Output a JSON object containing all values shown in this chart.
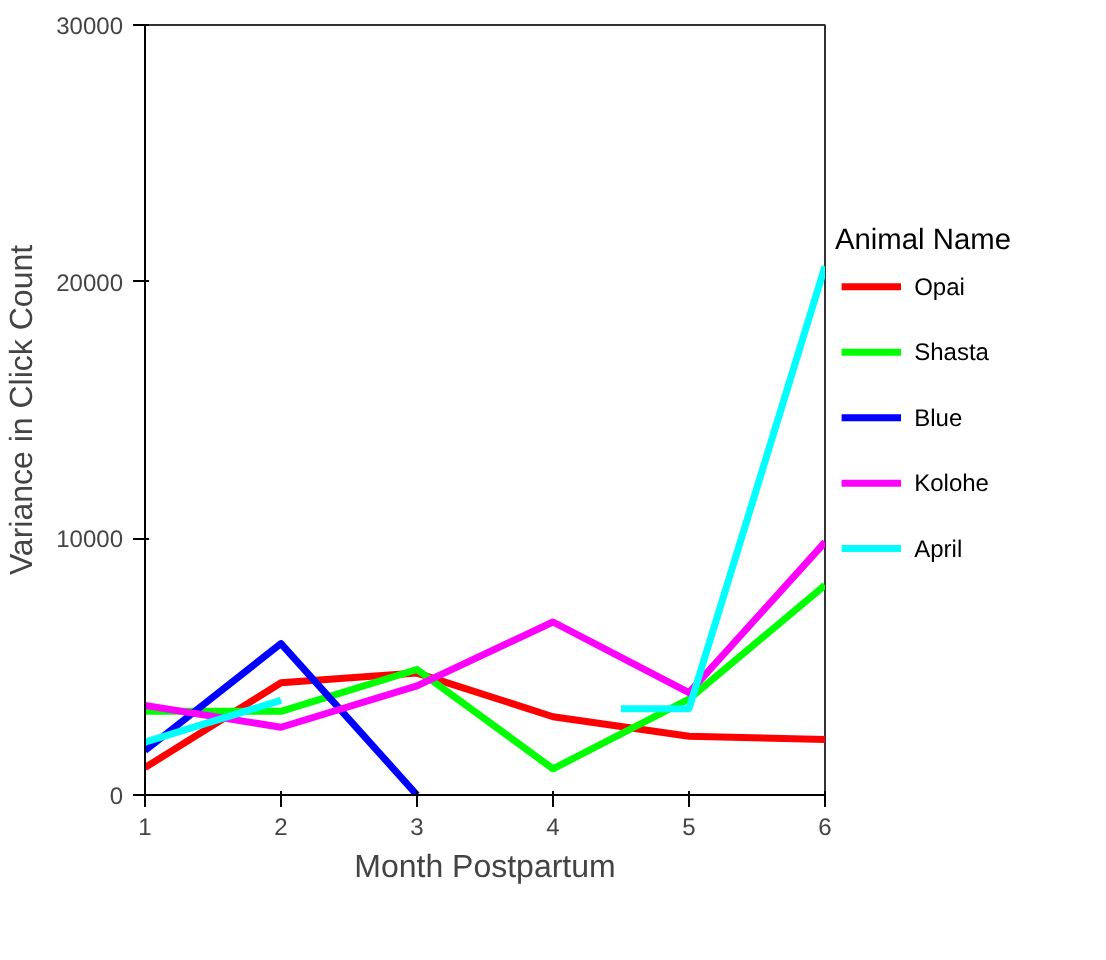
{
  "chart_data": {
    "type": "line",
    "xlabel": "Month Postpartum",
    "ylabel": "Variance in Click Count",
    "legend_title": "Animal Name",
    "x": [
      1,
      2,
      3,
      4,
      5,
      6
    ],
    "xlim": [
      1,
      6
    ],
    "xticks": [
      1,
      2,
      3,
      4,
      5,
      6
    ],
    "ylim": [
      0,
      30000
    ],
    "yticks": [
      0,
      10000,
      20000,
      30000
    ],
    "grid": false,
    "legend": "right",
    "marker": "none",
    "line_style": "solid",
    "series": [
      {
        "name": "Opai",
        "color": "#ff0000",
        "values": [
          1070,
          4370,
          4750,
          3050,
          2290,
          2160
        ]
      },
      {
        "name": "Shasta",
        "color": "#00ff00",
        "values": [
          3260,
          3260,
          4890,
          1020,
          3740,
          8170
        ]
      },
      {
        "name": "Blue",
        "color": "#0000ff",
        "values": [
          1730,
          5900,
          0,
          null,
          null,
          null
        ]
      },
      {
        "name": "Kolohe",
        "color": "#ff00ff",
        "values": [
          3490,
          2640,
          4250,
          6740,
          3990,
          9850
        ]
      },
      {
        "name": "April",
        "color": "#00ffff",
        "x": [
          1,
          2,
          3,
          4.5,
          5,
          6
        ],
        "values": [
          2060,
          3690,
          null,
          3360,
          3360,
          20600
        ]
      }
    ]
  }
}
